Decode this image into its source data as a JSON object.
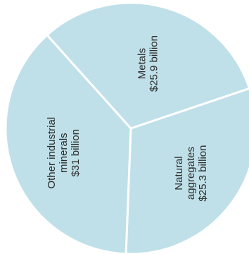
{
  "chart_data": {
    "type": "pie",
    "slices": [
      {
        "label": "Metals",
        "value_label": "$25.9 billion",
        "value": 25.9
      },
      {
        "label": "Natural aggregates",
        "value_label": "$25.3 billion",
        "value": 25.3
      },
      {
        "label": "Other industrial minerals",
        "value_label": "$31 billion",
        "value": 31.0
      }
    ],
    "colors": {
      "slice_fill": "#bfe0e8",
      "separator": "#ffffff",
      "text": "#2b2b2b"
    },
    "legend": "none"
  }
}
